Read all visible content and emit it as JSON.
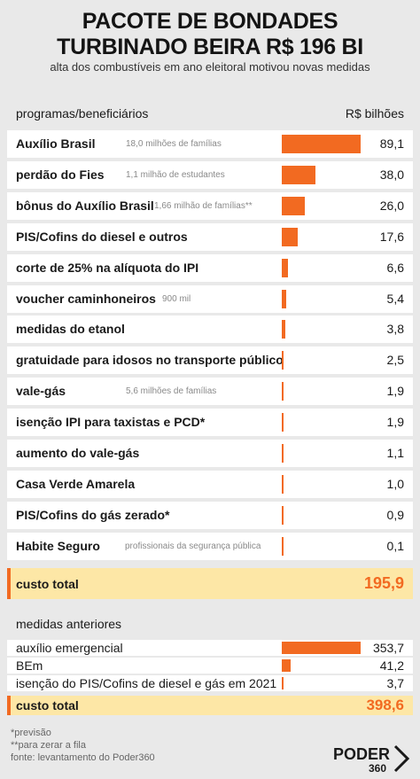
{
  "header": {
    "title_line1": "PACOTE DE BONDADES",
    "title_line2": "TURBINADO BEIRA R$ 196 BI",
    "subtitle": "alta dos combustíveis em ano eleitoral motivou novas medidas"
  },
  "columns": {
    "programs": "programas/beneficiários",
    "value": "R$ bilhões"
  },
  "total_label": "custo total",
  "previous_title": "medidas anteriores",
  "footnotes": [
    "*previsão",
    "**para zerar a fila",
    "fonte: levantamento do Poder360"
  ],
  "logo": {
    "text": "PODER",
    "number": "360"
  },
  "colors": {
    "bar": "#f26a21",
    "total_bg": "#fde7a6",
    "row_bg": "#ffffff",
    "page_bg": "#e9e9e9"
  },
  "chart_data": [
    {
      "type": "bar",
      "categories": [
        "Auxílio Brasil",
        "perdão do Fies",
        "bônus do Auxílio Brasil",
        "PIS/Cofins do diesel e outros",
        "corte de 25% na alíquota do IPI",
        "voucher caminhoneiros",
        "medidas do etanol",
        "gratuidade para idosos no transporte público",
        "vale-gás",
        "isenção IPI para taxistas e PCD*",
        "aumento do vale-gás",
        "Casa Verde Amarela",
        "PIS/Cofins do gás zerado*",
        "Habite Seguro"
      ],
      "notes": [
        "18,0 milhões de famílias",
        "1,1 milhão de estudantes",
        "1,66 milhão de famílias**",
        "",
        "",
        "900 mil",
        "",
        "",
        "5,6 milhões de famílias",
        "",
        "",
        "",
        "",
        "profissionais da segurança pública"
      ],
      "values": [
        89.1,
        38.0,
        26.0,
        17.6,
        6.6,
        5.4,
        3.8,
        2.5,
        1.9,
        1.9,
        1.1,
        1.0,
        0.9,
        0.1
      ],
      "value_labels": [
        "89,1",
        "38,0",
        "26,0",
        "17,6",
        "6,6",
        "5,4",
        "3,8",
        "2,5",
        "1,9",
        "1,9",
        "1,1",
        "1,0",
        "0,9",
        "0,1"
      ],
      "total_label": "195,9",
      "total": 195.9,
      "xlim": [
        0,
        89.1
      ]
    },
    {
      "type": "bar",
      "categories": [
        "auxílio emergencial",
        "BEm",
        "isenção do PIS/Cofins de diesel e gás em 2021"
      ],
      "values": [
        353.7,
        41.2,
        3.7
      ],
      "value_labels": [
        "353,7",
        "41,2",
        "3,7"
      ],
      "total_label": "398,6",
      "total": 398.6,
      "xlim": [
        0,
        353.7
      ]
    }
  ]
}
